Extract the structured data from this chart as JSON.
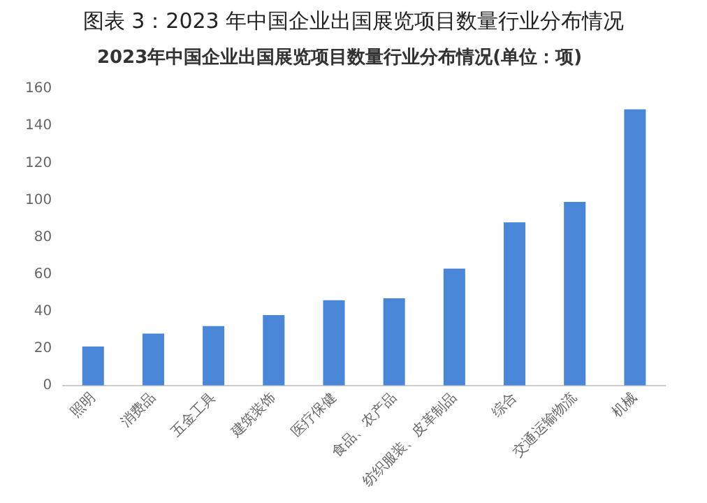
{
  "chart_data": {
    "type": "bar",
    "title": "图表 3：2023 年中国企业出国展览项目数量行业分布情况",
    "subtitle": "2023年中国企业出国展览项目数量行业分布情况(单位：项)",
    "categories": [
      "照明",
      "消费品",
      "五金工具",
      "建筑装饰",
      "医疗保健",
      "食品、农产品",
      "纺织服装、皮革制品",
      "综合",
      "交通运输物流",
      "机械"
    ],
    "values": [
      21,
      28,
      32,
      38,
      46,
      47,
      63,
      88,
      99,
      149
    ],
    "color": "#4a86d8",
    "ylim": [
      0,
      160
    ],
    "yticks": [
      0,
      20,
      40,
      60,
      80,
      100,
      120,
      140,
      160
    ],
    "grid": false,
    "legend": false
  }
}
